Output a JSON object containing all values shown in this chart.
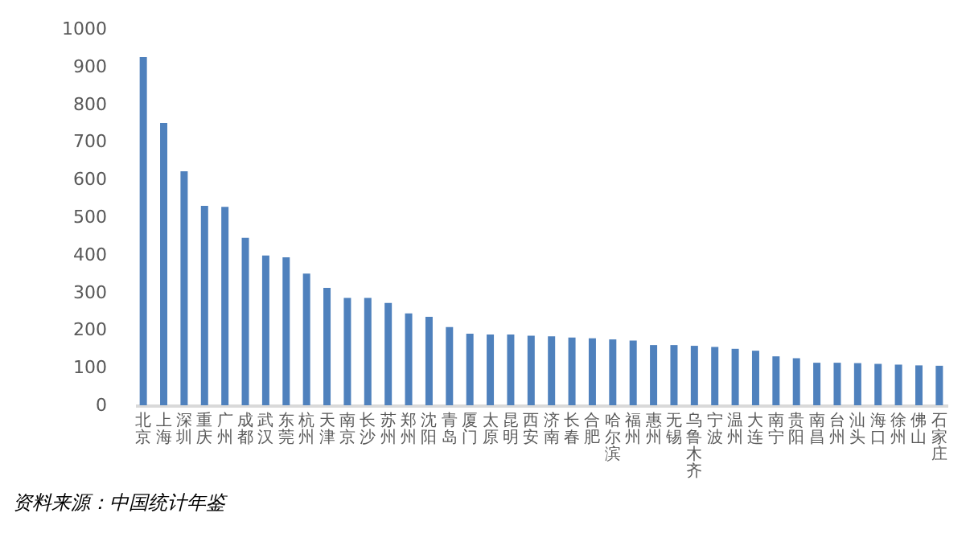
{
  "chart_data": {
    "type": "bar",
    "categories": [
      "北京",
      "上海",
      "深圳",
      "重庆",
      "广州",
      "成都",
      "武汉",
      "东莞",
      "杭州",
      "天津",
      "南京",
      "长沙",
      "苏州",
      "郑州",
      "沈阳",
      "青岛",
      "厦门",
      "太原",
      "昆明",
      "西安",
      "济南",
      "长春",
      "合肥",
      "哈尔滨",
      "福州",
      "惠州",
      "无锡",
      "乌鲁木齐",
      "宁波",
      "温州",
      "大连",
      "南宁",
      "贵阳",
      "南昌",
      "台州",
      "汕头",
      "海口",
      "徐州",
      "佛山",
      "石家庄"
    ],
    "values": [
      925,
      750,
      622,
      530,
      527,
      445,
      398,
      393,
      350,
      312,
      285,
      285,
      272,
      244,
      235,
      208,
      190,
      188,
      188,
      185,
      183,
      180,
      178,
      175,
      172,
      160,
      160,
      158,
      155,
      150,
      145,
      130,
      125,
      113,
      113,
      112,
      110,
      108,
      106,
      105
    ],
    "color": "#4f81bd",
    "ylim": [
      0,
      1000
    ],
    "yticks": [
      0,
      100,
      200,
      300,
      400,
      500,
      600,
      700,
      800,
      900,
      1000
    ],
    "grid": false,
    "annotations": [
      "资料来源：中国统计年鉴"
    ]
  }
}
